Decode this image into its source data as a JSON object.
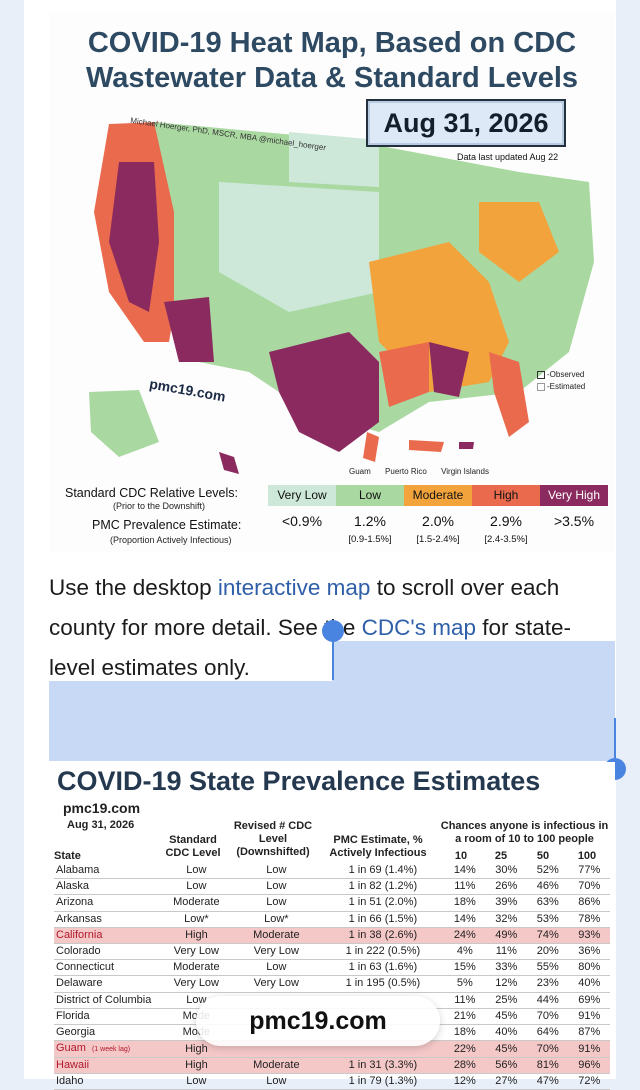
{
  "map": {
    "title_line1": "COVID-19 Heat Map, Based on CDC",
    "title_line2": "Wastewater Data & Standard Levels",
    "date": "Aug 31, 2026",
    "updated": "Data last updated Aug 22",
    "author": "Michael Hoerger, PhD, MSCR, MBA  @michael_hoerger",
    "watermark": "pmc19.com",
    "legend_observed": "-Observed",
    "legend_estimated": "-Estimated",
    "territories": [
      "Guam",
      "Puerto Rico",
      "Virgin Islands"
    ],
    "colors": {
      "very_low": "#cde8d9",
      "low": "#a9d9a0",
      "moderate": "#f3a33b",
      "high": "#ea6a4d",
      "very_high": "#8a2a5e"
    },
    "levels_label": "Standard CDC Relative Levels:",
    "levels_sub": "(Prior to the Downshift)",
    "levels": [
      "Very Low",
      "Low",
      "Moderate",
      "High",
      "Very High"
    ],
    "pmc_label": "PMC Prevalence Estimate:",
    "pmc_sub": "(Proportion Actively Infectious)",
    "pmc_values": [
      "<0.9%",
      "1.2%",
      "2.0%",
      "2.9%",
      ">3.5%"
    ],
    "pmc_ranges": [
      "",
      "[0.9-1.5%]",
      "[1.5-2.4%]",
      "[2.4-3.5%]",
      ""
    ]
  },
  "paragraph": {
    "t1": "Use the desktop ",
    "link1": "interactive map",
    "t2": " to scroll over each county for more detail. See the ",
    "link2": "CDC's map",
    "t3": " for state-level estimates only."
  },
  "table": {
    "title": "COVID-19 State Prevalence Estimates",
    "site": "pmc19.com",
    "date": "Aug 31, 2026",
    "h_state": "State",
    "h_cdc": "Standard CDC Level",
    "h_rev": "Revised # CDC Level (Downshifted)",
    "h_pmc": "PMC Estimate, % Actively Infectious",
    "h_chance": "Chances anyone is infectious in a room of 10 to 100 people",
    "h_cols": [
      "10",
      "25",
      "50",
      "100"
    ],
    "rows": [
      {
        "state": "Alabama",
        "cdc": "Low",
        "rev": "Low",
        "pmc": "1 in 69 (1.4%)",
        "c10": "14%",
        "c25": "30%",
        "c50": "52%",
        "c100": "77%",
        "hl": false
      },
      {
        "state": "Alaska",
        "cdc": "Low",
        "rev": "Low",
        "pmc": "1 in 82 (1.2%)",
        "c10": "11%",
        "c25": "26%",
        "c50": "46%",
        "c100": "70%",
        "hl": false
      },
      {
        "state": "Arizona",
        "cdc": "Moderate",
        "rev": "Low",
        "pmc": "1 in 51 (2.0%)",
        "c10": "18%",
        "c25": "39%",
        "c50": "63%",
        "c100": "86%",
        "hl": false
      },
      {
        "state": "Arkansas",
        "cdc": "Low*",
        "rev": "Low*",
        "pmc": "1 in 66 (1.5%)",
        "c10": "14%",
        "c25": "32%",
        "c50": "53%",
        "c100": "78%",
        "hl": false
      },
      {
        "state": "California",
        "cdc": "High",
        "rev": "Moderate",
        "pmc": "1 in 38 (2.6%)",
        "c10": "24%",
        "c25": "49%",
        "c50": "74%",
        "c100": "93%",
        "hl": true
      },
      {
        "state": "Colorado",
        "cdc": "Very Low",
        "rev": "Very Low",
        "pmc": "1 in 222 (0.5%)",
        "c10": "4%",
        "c25": "11%",
        "c50": "20%",
        "c100": "36%",
        "hl": false
      },
      {
        "state": "Connecticut",
        "cdc": "Moderate",
        "rev": "Low",
        "pmc": "1 in 63 (1.6%)",
        "c10": "15%",
        "c25": "33%",
        "c50": "55%",
        "c100": "80%",
        "hl": false
      },
      {
        "state": "Delaware",
        "cdc": "Very Low",
        "rev": "Very Low",
        "pmc": "1 in 195 (0.5%)",
        "c10": "5%",
        "c25": "12%",
        "c50": "23%",
        "c100": "40%",
        "hl": false
      },
      {
        "state": "District of Columbia",
        "cdc": "Low",
        "rev": "",
        "pmc": "",
        "c10": "11%",
        "c25": "25%",
        "c50": "44%",
        "c100": "69%",
        "hl": false
      },
      {
        "state": "Florida",
        "cdc": "Mode",
        "rev": "",
        "pmc": "",
        "c10": "21%",
        "c25": "45%",
        "c50": "70%",
        "c100": "91%",
        "hl": false
      },
      {
        "state": "Georgia",
        "cdc": "Mode",
        "rev": "",
        "pmc": "",
        "c10": "18%",
        "c25": "40%",
        "c50": "64%",
        "c100": "87%",
        "hl": false
      },
      {
        "state": "Guam",
        "lag": "(1 week lag)",
        "cdc": "High",
        "rev": "",
        "pmc": "",
        "c10": "22%",
        "c25": "45%",
        "c50": "70%",
        "c100": "91%",
        "hl": true
      },
      {
        "state": "Hawaii",
        "cdc": "High",
        "rev": "Moderate",
        "pmc": "1 in 31 (3.3%)",
        "c10": "28%",
        "c25": "56%",
        "c50": "81%",
        "c100": "96%",
        "hl": true
      },
      {
        "state": "Idaho",
        "cdc": "Low",
        "rev": "Low",
        "pmc": "1 in 79 (1.3%)",
        "c10": "12%",
        "c25": "27%",
        "c50": "47%",
        "c100": "72%",
        "hl": false
      }
    ]
  },
  "overlay": {
    "label": "pmc19.com"
  }
}
